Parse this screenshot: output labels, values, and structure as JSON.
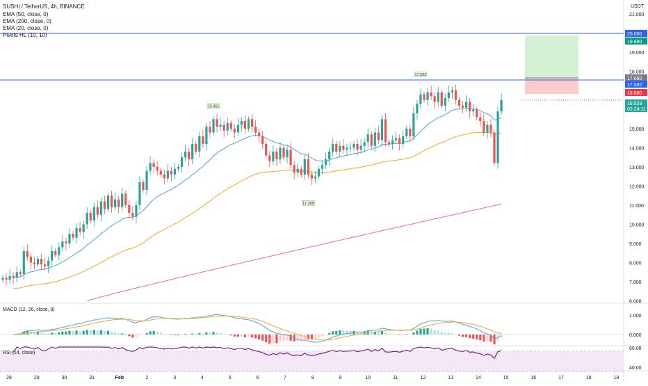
{
  "header": {
    "title": "SUSHI / TetherUS, 4h, BINANCE",
    "indicators": [
      "EMA (50, close, 0)",
      "EMA (200, close, 0)",
      "EMA (20, close, 0)",
      "Pivots HL (10, 10)"
    ]
  },
  "currency_label": "USDT",
  "price_axis": {
    "ticks": [
      "21.000",
      "20.000",
      "19.000",
      "18.000",
      "17.000",
      "16.000",
      "15.000",
      "14.000",
      "13.000",
      "12.000",
      "11.000",
      "10.000",
      "9.000",
      "8.000",
      "7.000",
      "6.000"
    ],
    "ylim": [
      6,
      21
    ],
    "badges": [
      {
        "value": "20.000",
        "color": "#2962ff"
      },
      {
        "value": "19.880",
        "color": "#089981"
      },
      {
        "value": "17.680",
        "color": "#787b86"
      },
      {
        "value": "17.592",
        "color": "#2962ff"
      },
      {
        "value": "16.880",
        "color": "#f23645"
      },
      {
        "value": "16.529",
        "color": "#26a69a"
      },
      {
        "value": "02:24:11",
        "color": "#26a69a"
      }
    ]
  },
  "time_axis": {
    "ticks": [
      "28",
      "29",
      "30",
      "31",
      "Feb",
      "2",
      "3",
      "4",
      "5",
      "6",
      "7",
      "8",
      "9",
      "10",
      "11",
      "12",
      "13",
      "14",
      "15",
      "16",
      "17",
      "18",
      "19"
    ]
  },
  "pivot_labels": [
    "15.951",
    "17.592",
    "11.388"
  ],
  "macd": {
    "label": "MACD (12, 26, close, 9)",
    "ticks": [
      "1.000",
      "0.000"
    ]
  },
  "rsi": {
    "label": "RSI (14, close)",
    "ticks": [
      "60.00",
      "40.00"
    ]
  },
  "colors": {
    "up": "#26a69a",
    "down": "#ef5350",
    "ema20": "#4ba3e3",
    "ema50": "#f5a623",
    "ema200": "#f07167",
    "macd": "#4ba3e3",
    "signal": "#f5a623",
    "rsi": "#7e1f86",
    "hline": "#2962ff"
  },
  "chart_data": {
    "type": "candlestick",
    "title": "SUSHI / TetherUS, 4h, BINANCE",
    "x_dates": [
      "Jan 28",
      "Jan 29",
      "Jan 30",
      "Jan 31",
      "Feb 1",
      "Feb 2",
      "Feb 3",
      "Feb 4",
      "Feb 5",
      "Feb 6",
      "Feb 7",
      "Feb 8",
      "Feb 9",
      "Feb 10",
      "Feb 11",
      "Feb 12",
      "Feb 13",
      "Feb 14",
      "Feb 15",
      "Feb 16",
      "Feb 17",
      "Feb 18",
      "Feb 19"
    ],
    "horizontal_lines": [
      20.0,
      17.592
    ],
    "position": {
      "entry": 17.68,
      "target": 20.0,
      "stop": 16.88
    },
    "last_price": 16.529,
    "close_series": [
      7.2,
      7.1,
      7.3,
      7.2,
      7.5,
      7.4,
      8.6,
      8.3,
      8.0,
      7.9,
      8.2,
      7.9,
      7.8,
      8.1,
      8.6,
      8.4,
      8.8,
      9.1,
      9.0,
      9.5,
      9.3,
      9.8,
      9.6,
      10.0,
      10.6,
      10.2,
      10.9,
      10.5,
      11.2,
      10.8,
      11.5,
      10.9,
      11.3,
      10.9,
      11.6,
      11.0,
      10.6,
      10.4,
      11.0,
      12.2,
      11.8,
      12.8,
      13.2,
      13.0,
      12.8,
      12.6,
      12.4,
      12.8,
      12.6,
      12.9,
      13.0,
      13.5,
      13.8,
      13.4,
      14.2,
      13.8,
      14.6,
      14.2,
      15.1,
      14.8,
      15.5,
      15.1,
      15.2,
      14.9,
      15.3,
      15.0,
      14.8,
      15.2,
      15.4,
      15.0,
      15.5,
      15.1,
      14.8,
      14.6,
      14.2,
      13.6,
      13.3,
      13.8,
      13.4,
      14.0,
      13.5,
      13.9,
      13.1,
      12.7,
      12.9,
      12.6,
      13.4,
      12.6,
      12.4,
      12.5,
      12.9,
      13.1,
      13.4,
      13.8,
      14.2,
      13.8,
      14.1,
      13.9,
      14.0,
      14.0,
      14.2,
      13.9,
      14.1,
      14.3,
      14.7,
      14.1,
      14.8,
      14.4,
      15.5,
      14.3,
      14.2,
      14.4,
      14.5,
      14.2,
      14.6,
      15.0,
      14.6,
      15.8,
      16.3,
      16.8,
      16.5,
      16.9,
      16.7,
      16.4,
      16.9,
      16.2,
      16.6,
      16.9,
      17.0,
      16.5,
      16.2,
      16.1,
      16.4,
      15.9,
      16.0,
      15.6,
      15.4,
      14.8,
      15.2,
      14.8,
      13.2,
      15.9,
      16.5
    ],
    "ema20_endpoints": [
      15.2
    ],
    "ema50_endpoints": [
      15.0
    ],
    "ema200_endpoints": [
      11.1
    ]
  }
}
